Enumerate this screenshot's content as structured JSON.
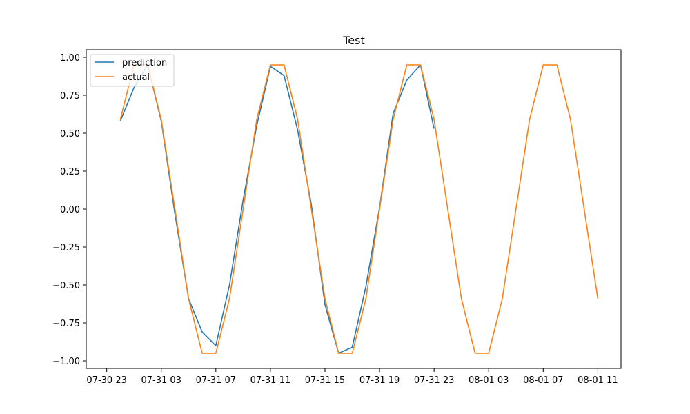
{
  "chart_data": {
    "type": "line",
    "title": "Test",
    "xlabel": "",
    "ylabel": "",
    "x_ticks": [
      "07-30 23",
      "07-31 03",
      "07-31 07",
      "07-31 11",
      "07-31 15",
      "07-31 19",
      "07-31 23",
      "08-01 03",
      "08-01 07",
      "08-01 11"
    ],
    "x_tick_hours": [
      0,
      4,
      8,
      12,
      16,
      20,
      24,
      28,
      32,
      36
    ],
    "x_range_hours": [
      -1.5,
      37.7
    ],
    "y_ticks": [
      "1.00",
      "0.75",
      "0.50",
      "0.25",
      "0.00",
      "−0.25",
      "−0.50",
      "−0.75",
      "−1.00"
    ],
    "y_tick_values": [
      1.0,
      0.75,
      0.5,
      0.25,
      0.0,
      -0.25,
      -0.5,
      -0.75,
      -1.0
    ],
    "ylim": [
      -1.05,
      1.05
    ],
    "grid": false,
    "legend_position": "top-left",
    "series": [
      {
        "name": "prediction",
        "color": "#1f77b4",
        "x_hours": [
          1,
          2,
          3,
          4,
          5,
          6,
          7,
          8,
          9,
          10,
          11,
          12,
          13,
          14,
          15,
          16,
          17,
          18,
          19,
          20,
          21,
          22,
          23,
          24
        ],
        "values": [
          0.58,
          0.8,
          0.95,
          0.58,
          -0.03,
          -0.59,
          -0.81,
          -0.9,
          -0.5,
          0.06,
          0.55,
          0.94,
          0.88,
          0.52,
          0.03,
          -0.63,
          -0.95,
          -0.91,
          -0.51,
          0.01,
          0.63,
          0.85,
          0.95,
          0.53
        ]
      },
      {
        "name": "actual",
        "color": "#ff7f0e",
        "x_hours": [
          1,
          2,
          3,
          4,
          5,
          6,
          7,
          8,
          9,
          10,
          11,
          12,
          13,
          14,
          15,
          16,
          17,
          18,
          19,
          20,
          21,
          22,
          23,
          24,
          25,
          26,
          27,
          28,
          29,
          30,
          31,
          32,
          33,
          34,
          35,
          36
        ],
        "values": [
          0.59,
          0.95,
          0.95,
          0.59,
          0.0,
          -0.59,
          -0.95,
          -0.95,
          -0.59,
          0.0,
          0.59,
          0.95,
          0.95,
          0.59,
          0.0,
          -0.59,
          -0.95,
          -0.95,
          -0.59,
          0.0,
          0.59,
          0.95,
          0.95,
          0.59,
          0.0,
          -0.59,
          -0.95,
          -0.95,
          -0.59,
          0.0,
          0.59,
          0.95,
          0.95,
          0.59,
          0.0,
          -0.59
        ]
      }
    ]
  }
}
